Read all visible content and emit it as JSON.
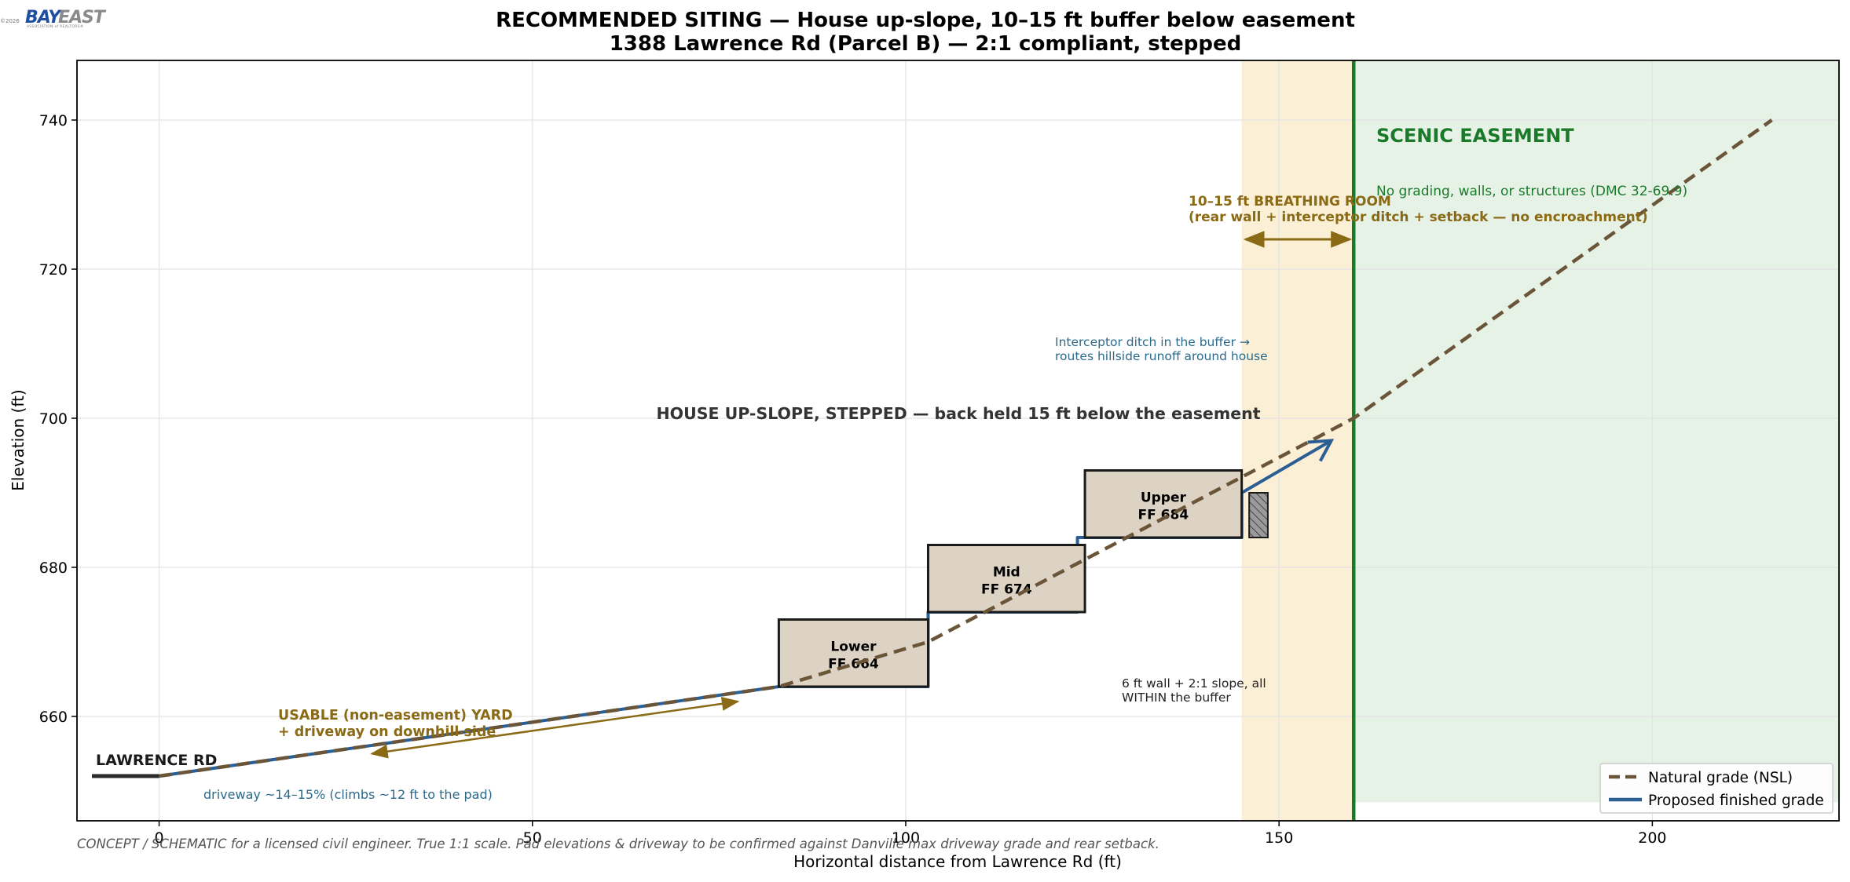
{
  "logo": {
    "copyright": "©2026",
    "bay": "BAY",
    "east": "EAST",
    "subtitle": "ASSOCIATION of REALTORS®"
  },
  "chart_data": {
    "type": "line",
    "title": "RECOMMENDED SITING — House up-slope, 10–15 ft buffer below easement",
    "subtitle": "1388 Lawrence Rd (Parcel B) — 2:1 compliant, stepped",
    "xlabel": "Horizontal distance from Lawrence Rd (ft)",
    "ylabel": "Elevation (ft)",
    "xlim": [
      -11,
      225
    ],
    "ylim": [
      646,
      748
    ],
    "xticks": [
      0,
      50,
      100,
      150,
      200
    ],
    "yticks": [
      660,
      680,
      700,
      720,
      740
    ],
    "grid": true,
    "legend_position": "lower-right",
    "colors": {
      "natural": "#6b5539",
      "proposed": "#2b5f94",
      "easement_line": "#1a7a2a",
      "easement_fill": "#e6f2e6",
      "buffer_fill": "#fbf0d6",
      "annotation_gold": "#8a6a14",
      "annotation_blue": "#2b6a8a",
      "annotation_green": "#1a7a2a",
      "house_fill": "#dcd3c4",
      "dark": "#2b2b2b"
    },
    "series": [
      {
        "name": "Natural grade (NSL)",
        "style": "dashed",
        "points": [
          [
            0,
            652
          ],
          [
            83,
            664
          ],
          [
            103,
            670
          ],
          [
            160,
            700
          ],
          [
            216,
            740
          ]
        ]
      },
      {
        "name": "Proposed finished grade",
        "style": "solid",
        "points": [
          [
            0,
            652
          ],
          [
            83,
            664
          ],
          [
            103,
            664
          ],
          [
            103,
            674
          ],
          [
            123,
            674
          ],
          [
            123,
            684
          ],
          [
            145,
            684
          ],
          [
            145,
            690
          ],
          [
            157,
            697
          ]
        ]
      }
    ],
    "road": {
      "label": "LAWRENCE RD",
      "x": [
        -9,
        0
      ],
      "y": 652
    },
    "regions": {
      "buffer": {
        "x": [
          145,
          160
        ]
      },
      "easement": {
        "x": [
          160,
          225
        ],
        "y_from": 648.5,
        "title": "SCENIC EASEMENT",
        "note": "No grading, walls, or structures (DMC 32-69.9)"
      }
    },
    "houses": [
      {
        "label": "Lower",
        "ff": "FF 664",
        "x": [
          83,
          103
        ],
        "y": [
          664,
          673
        ]
      },
      {
        "label": "Mid",
        "ff": "FF 674",
        "x": [
          103,
          124
        ],
        "y": [
          674,
          683
        ]
      },
      {
        "label": "Upper",
        "ff": "FF 684",
        "x": [
          124,
          145
        ],
        "y": [
          684,
          693
        ]
      }
    ],
    "wall": {
      "x": [
        146,
        148.5
      ],
      "y": [
        684,
        690
      ]
    },
    "annotations": {
      "breathing_1": "10–15 ft BREATHING ROOM",
      "breathing_2": "(rear wall + interceptor ditch + setback — no encroachment)",
      "ditch_1": "Interceptor ditch in the buffer →",
      "ditch_2": "routes hillside runoff around house",
      "house_note": "HOUSE UP-SLOPE, STEPPED — back held 15 ft below the easement",
      "wall_1": "6 ft wall + 2:1 slope, all",
      "wall_2": "WITHIN the buffer",
      "yard_1": "USABLE (non-easement) YARD",
      "yard_2": "+ driveway on downhill side",
      "driveway": "driveway ~14–15% (climbs ~12 ft to the pad)",
      "footer": "CONCEPT / SCHEMATIC for a licensed civil engineer. True 1:1 scale. Pad elevations & driveway to be confirmed against Danville max driveway grade and rear setback."
    }
  }
}
